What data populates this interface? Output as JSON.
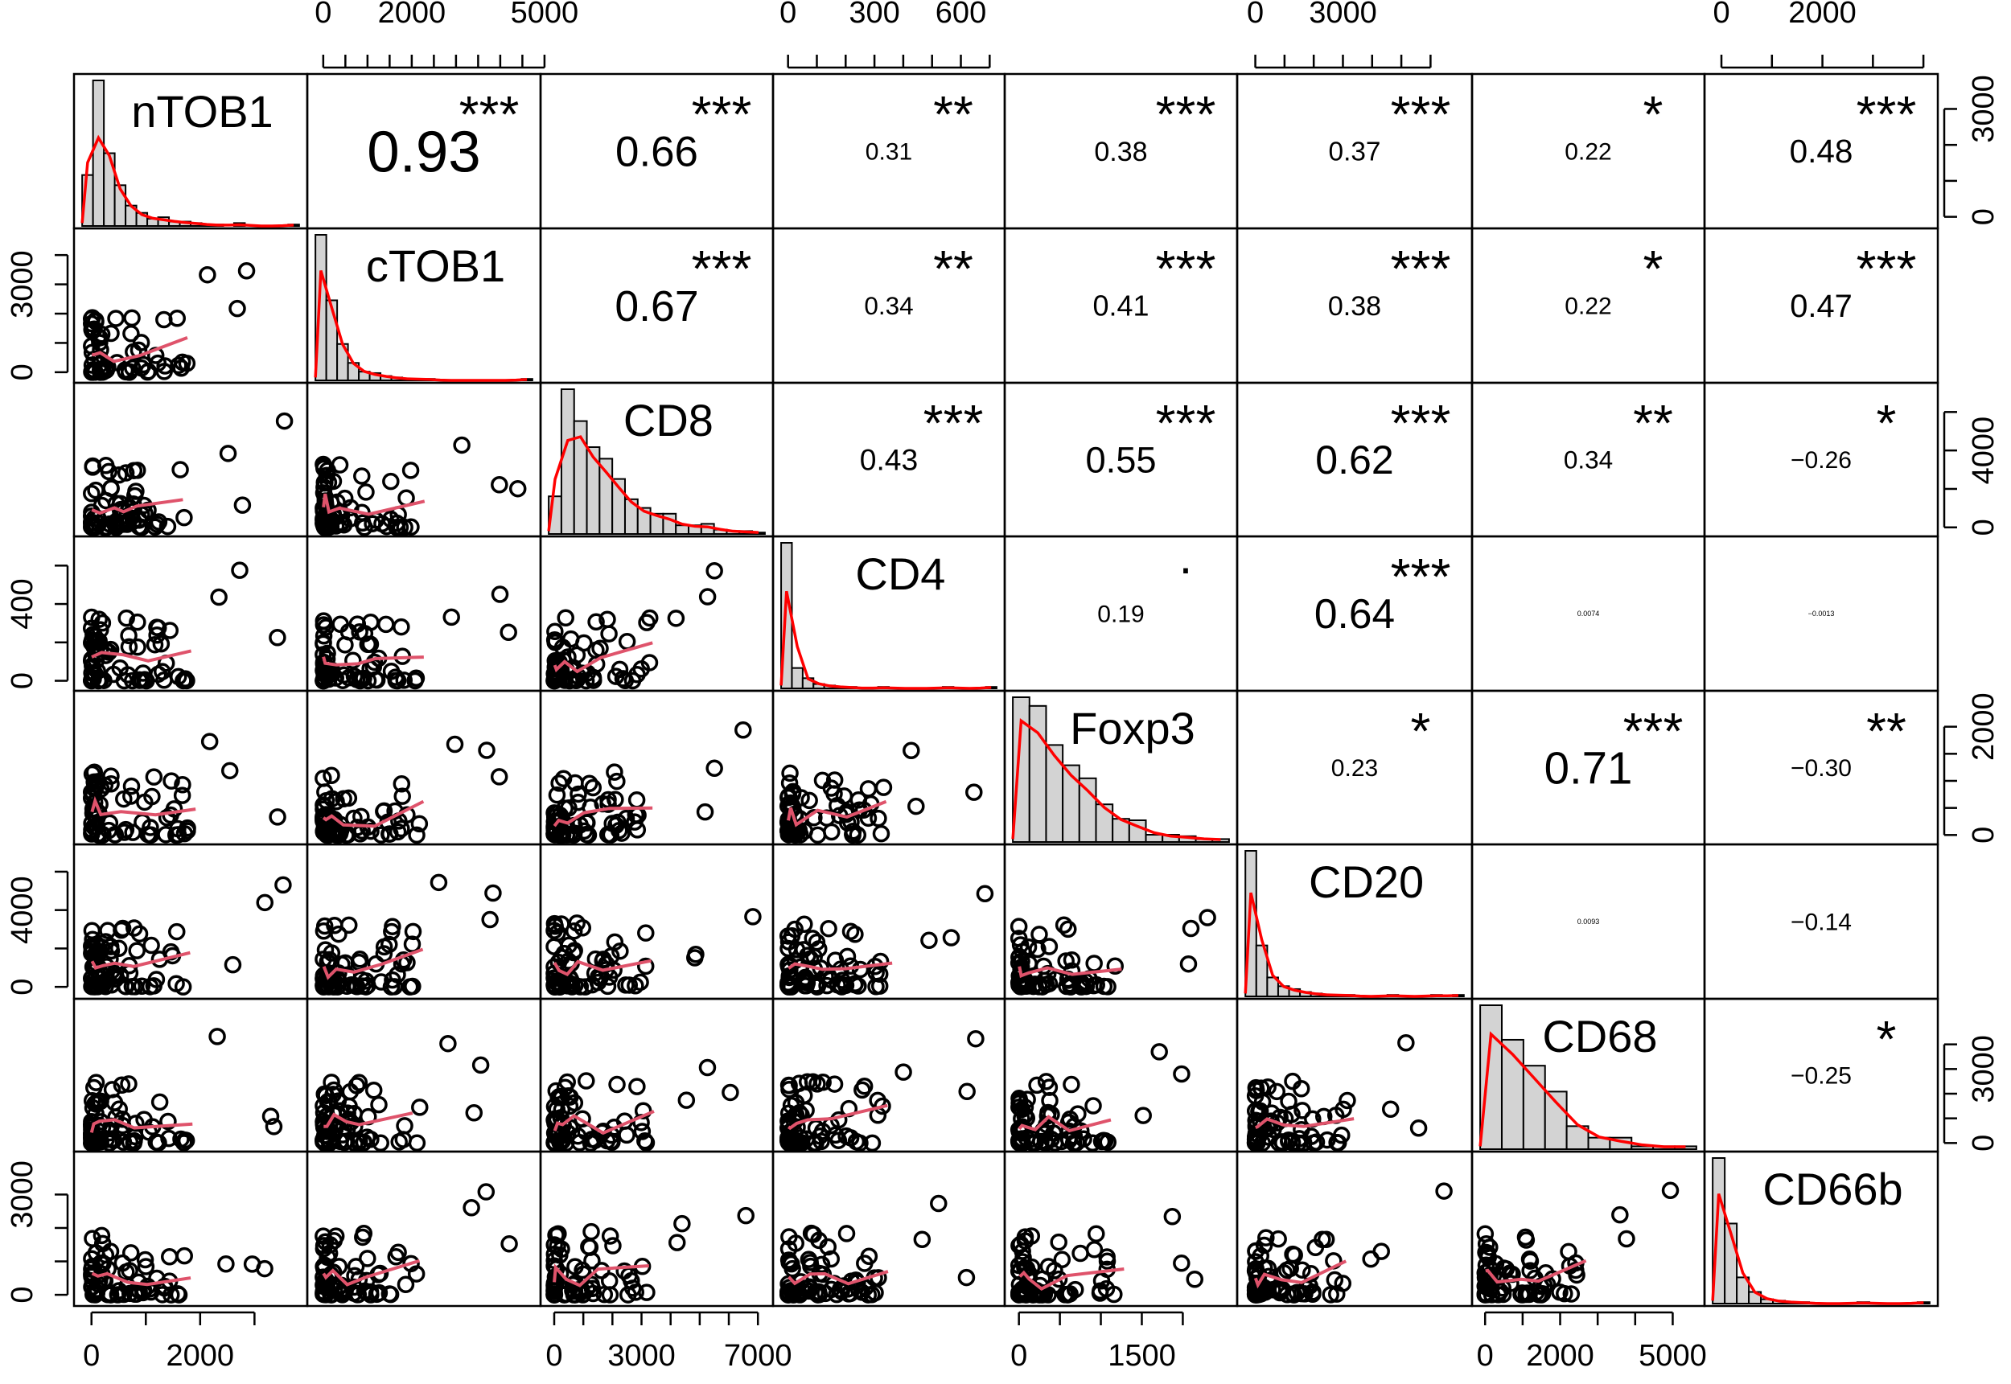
{
  "chart_data": {
    "type": "scatter",
    "variables": [
      "nTOB1",
      "cTOB1",
      "CD8",
      "CD4",
      "Foxp3",
      "CD20",
      "CD68",
      "CD66b"
    ],
    "ranges": [
      [
        -150,
        3800
      ],
      [
        -150,
        4700
      ],
      [
        -150,
        7200
      ],
      [
        -20,
        720
      ],
      [
        -60,
        2550
      ],
      [
        -300,
        7100
      ],
      [
        -100,
        5600
      ],
      [
        -150,
        4100
      ]
    ],
    "axis_ticks": {
      "top": [
        [],
        [
          0,
          2000,
          5000
        ],
        [],
        [
          0,
          300,
          600
        ],
        [],
        [
          0,
          3000
        ],
        [],
        [
          0,
          2000
        ]
      ],
      "right": [
        [
          0,
          3000
        ],
        [],
        [
          0,
          4000
        ],
        [],
        [
          0,
          2000
        ],
        [],
        [
          0,
          3000
        ],
        []
      ],
      "bottom": [
        [
          0,
          2000
        ],
        [],
        [
          0,
          3000,
          7000
        ],
        [],
        [
          0,
          1500
        ],
        [],
        [
          0,
          2000,
          5000
        ],
        []
      ],
      "left": [
        [],
        [
          0,
          3000
        ],
        [],
        [
          0,
          400
        ],
        [],
        [
          0,
          4000
        ],
        [],
        [
          0,
          3000
        ]
      ]
    },
    "minor_ticks": {
      "top": [
        [],
        [
          500,
          1000,
          1500,
          2500,
          3000,
          3500,
          4000,
          4500
        ],
        [],
        [
          100,
          200,
          400,
          500,
          700
        ],
        [],
        [
          1000,
          2000,
          4000,
          5000,
          6000
        ],
        [],
        [
          1000,
          3000,
          4000
        ]
      ],
      "right": [
        [
          1000,
          2000
        ],
        [],
        [
          2000,
          6000
        ],
        [],
        [
          500,
          1000,
          1500
        ],
        [],
        [
          1000,
          2000,
          4000
        ],
        []
      ],
      "bottom": [
        [
          1000,
          3000
        ],
        [],
        [
          1000,
          2000,
          4000,
          5000,
          6000
        ],
        [],
        [
          500,
          1000,
          2000
        ],
        [],
        [
          1000,
          3000,
          4000
        ],
        []
      ],
      "left": [
        [],
        [
          1000,
          2000,
          4000
        ],
        [],
        [
          200,
          600
        ],
        [],
        [
          2000,
          6000
        ],
        [],
        [
          1000,
          2000
        ]
      ]
    },
    "correlations": [
      {
        "row": 0,
        "col": 1,
        "value": "0.93",
        "stars": "***"
      },
      {
        "row": 0,
        "col": 2,
        "value": "0.66",
        "stars": "***"
      },
      {
        "row": 0,
        "col": 3,
        "value": "0.31",
        "stars": "**"
      },
      {
        "row": 0,
        "col": 4,
        "value": "0.38",
        "stars": "***"
      },
      {
        "row": 0,
        "col": 5,
        "value": "0.37",
        "stars": "***"
      },
      {
        "row": 0,
        "col": 6,
        "value": "0.22",
        "stars": "*"
      },
      {
        "row": 0,
        "col": 7,
        "value": "0.48",
        "stars": "***"
      },
      {
        "row": 1,
        "col": 2,
        "value": "0.67",
        "stars": "***"
      },
      {
        "row": 1,
        "col": 3,
        "value": "0.34",
        "stars": "**"
      },
      {
        "row": 1,
        "col": 4,
        "value": "0.41",
        "stars": "***"
      },
      {
        "row": 1,
        "col": 5,
        "value": "0.38",
        "stars": "***"
      },
      {
        "row": 1,
        "col": 6,
        "value": "0.22",
        "stars": "*"
      },
      {
        "row": 1,
        "col": 7,
        "value": "0.47",
        "stars": "***"
      },
      {
        "row": 2,
        "col": 3,
        "value": "0.43",
        "stars": "***"
      },
      {
        "row": 2,
        "col": 4,
        "value": "0.55",
        "stars": "***"
      },
      {
        "row": 2,
        "col": 5,
        "value": "0.62",
        "stars": "***"
      },
      {
        "row": 2,
        "col": 6,
        "value": "0.34",
        "stars": "**"
      },
      {
        "row": 2,
        "col": 7,
        "value": "−0.26",
        "stars": "*"
      },
      {
        "row": 3,
        "col": 4,
        "value": "0.19",
        "stars": "."
      },
      {
        "row": 3,
        "col": 5,
        "value": "0.64",
        "stars": "***"
      },
      {
        "row": 3,
        "col": 6,
        "value": "0.0074",
        "stars": ""
      },
      {
        "row": 3,
        "col": 7,
        "value": "−0.0013",
        "stars": ""
      },
      {
        "row": 4,
        "col": 5,
        "value": "0.23",
        "stars": "*"
      },
      {
        "row": 4,
        "col": 6,
        "value": "0.71",
        "stars": "***"
      },
      {
        "row": 4,
        "col": 7,
        "value": "−0.30",
        "stars": "**"
      },
      {
        "row": 5,
        "col": 6,
        "value": "0.0093",
        "stars": ""
      },
      {
        "row": 5,
        "col": 7,
        "value": "−0.14",
        "stars": ""
      },
      {
        "row": 6,
        "col": 7,
        "value": "−0.25",
        "stars": "*"
      }
    ],
    "histograms": [
      [
        0.35,
        1.0,
        0.5,
        0.28,
        0.14,
        0.09,
        0.05,
        0.06,
        0.03,
        0.03,
        0.02,
        0.01,
        0.01,
        0.0,
        0.02,
        0.0,
        0.0,
        0.0,
        0.0,
        0.01
      ],
      [
        1.0,
        0.55,
        0.25,
        0.12,
        0.06,
        0.05,
        0.03,
        0.02,
        0.01,
        0.01,
        0.01,
        0.0,
        0.0,
        0.0,
        0.0,
        0.0,
        0.0,
        0.0,
        0.0,
        0.01
      ],
      [
        0.26,
        1.0,
        0.78,
        0.6,
        0.52,
        0.38,
        0.24,
        0.18,
        0.14,
        0.14,
        0.06,
        0.06,
        0.07,
        0.03,
        0.02,
        0.02,
        0.01
      ],
      [
        1.0,
        0.14,
        0.07,
        0.03,
        0.02,
        0.01,
        0.01,
        0.0,
        0.0,
        0.01,
        0.0,
        0.0,
        0.0,
        0.0,
        0.0,
        0.01,
        0.0,
        0.0,
        0.0,
        0.01
      ],
      [
        1.0,
        0.94,
        0.67,
        0.53,
        0.44,
        0.26,
        0.16,
        0.15,
        0.05,
        0.05,
        0.04,
        0.02,
        0.02
      ],
      [
        1.0,
        0.35,
        0.13,
        0.07,
        0.05,
        0.03,
        0.02,
        0.01,
        0.01,
        0.01,
        0.0,
        0.0,
        0.0,
        0.01,
        0.0,
        0.0,
        0.0,
        0.01,
        0.0,
        0.01
      ],
      [
        1.0,
        0.76,
        0.58,
        0.4,
        0.16,
        0.08,
        0.08,
        0.02,
        0.02,
        0.02
      ],
      [
        1.0,
        0.55,
        0.18,
        0.08,
        0.03,
        0.02,
        0.01,
        0.01,
        0.0,
        0.0,
        0.0,
        0.0,
        0.01,
        0.0,
        0.0,
        0.0,
        0.0,
        0.01
      ]
    ],
    "colors": {
      "stars": "#DF536B",
      "smooth": "#DF536B",
      "density": "#FF0000",
      "bars": "#D3D3D3"
    }
  }
}
